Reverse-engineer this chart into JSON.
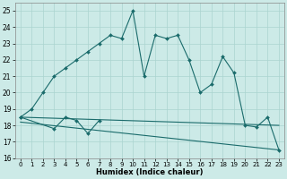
{
  "xlabel": "Humidex (Indice chaleur)",
  "x_main": [
    0,
    1,
    2,
    3,
    4,
    5,
    6,
    7,
    8,
    9,
    10,
    11,
    12,
    13,
    14,
    15,
    16,
    17,
    18,
    19,
    20,
    21,
    22,
    23
  ],
  "line_main": [
    18.5,
    19.0,
    20.0,
    21.0,
    21.5,
    22.0,
    22.5,
    23.0,
    23.5,
    23.3,
    25.0,
    21.0,
    23.5,
    23.3,
    23.5,
    22.0,
    20.0,
    20.5,
    22.2,
    21.2,
    18.0,
    17.9,
    18.5,
    16.5
  ],
  "x_short": [
    0,
    3,
    4,
    5,
    6,
    7
  ],
  "line_short": [
    18.5,
    17.8,
    18.5,
    18.3,
    17.5,
    18.3
  ],
  "trend1_x": [
    0,
    23
  ],
  "trend1_y": [
    18.5,
    18.0
  ],
  "trend2_x": [
    0,
    23
  ],
  "trend2_y": [
    18.2,
    16.5
  ],
  "ylim": [
    16,
    25.5
  ],
  "xlim": [
    -0.5,
    23.5
  ],
  "yticks": [
    16,
    17,
    18,
    19,
    20,
    21,
    22,
    23,
    24,
    25
  ],
  "xticks": [
    0,
    1,
    2,
    3,
    4,
    5,
    6,
    7,
    8,
    9,
    10,
    11,
    12,
    13,
    14,
    15,
    16,
    17,
    18,
    19,
    20,
    21,
    22,
    23
  ],
  "bg_color": "#cceae7",
  "line_color": "#1a6b6b",
  "grid_color": "#aad4d0"
}
